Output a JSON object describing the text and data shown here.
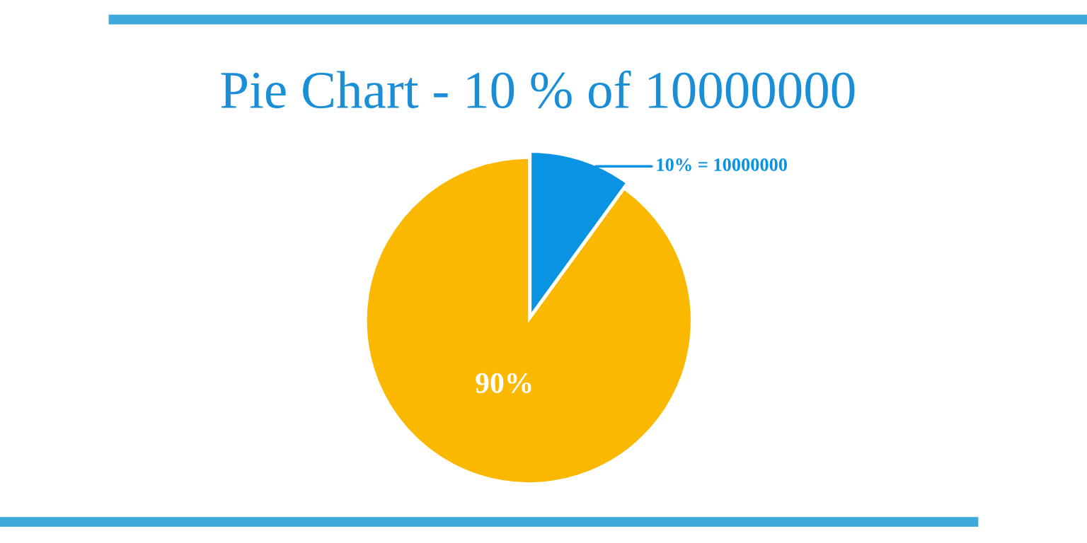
{
  "chart_data": {
    "type": "pie",
    "title": "Pie Chart - 10 % of 10000000",
    "categories": [
      null,
      null
    ],
    "values": [
      10,
      90
    ],
    "colors": [
      "#0a93e2",
      "#fbb800"
    ],
    "value_labels": [
      "10% = 10000000",
      "90%"
    ]
  }
}
